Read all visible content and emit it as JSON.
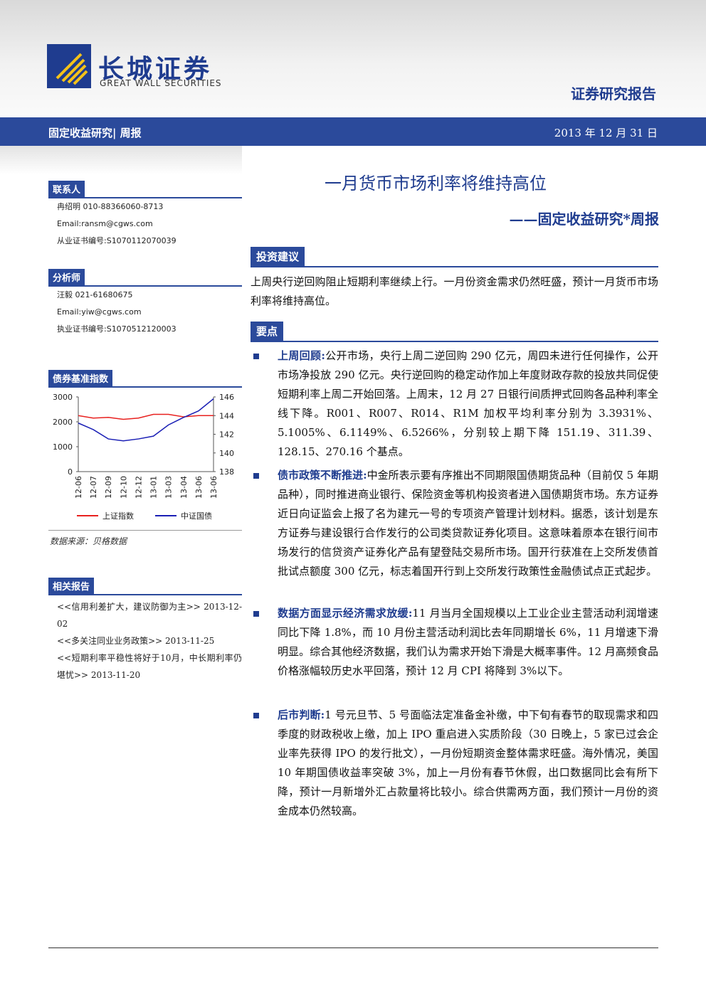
{
  "header": {
    "logo_cn": "长城证券",
    "logo_en": "GREAT WALL SECURITIES",
    "report_type": "证券研究报告",
    "band_left": "固定收益研究| 周报",
    "date": "2013 年 12 月 31 日"
  },
  "sidebar": {
    "contacts": {
      "heading": "联系人",
      "lines": [
        "冉绍明 010-88366060-8713",
        "Email:ransm@cgws.com",
        "从业证书编号:S1070112070039"
      ]
    },
    "analysts": {
      "heading": "分析师",
      "lines": [
        "汪毅 021-61680675",
        "Email:yiw@cgws.com",
        "执业证书编号:S1070512120003"
      ]
    },
    "chart_heading": "债券基准指数",
    "chart_source": "数据来源：贝格数据",
    "related": {
      "heading": "相关报告",
      "items": [
        "<<信用利差扩大，建议防御为主>> 2013-12-02",
        "<<多关注同业业务政策>> 2013-11-25",
        "<<短期利率平稳性将好于10月，中长期利率仍堪忧>> 2013-11-20"
      ]
    }
  },
  "main": {
    "title": "一月货币市场利率将维持高位",
    "subtitle": "——固定收益研究*周报",
    "advice": {
      "heading": "投资建议",
      "text": "上周央行逆回购阻止短期利率继续上行。一月份资金需求仍然旺盛，预计一月货币市场利率将维持高位。"
    },
    "points": {
      "heading": "要点",
      "items": [
        {
          "lead": "上周回顾:",
          "text": "公开市场，央行上周二逆回购 290 亿元，周四未进行任何操作，公开市场净投放 290 亿元。央行逆回购的稳定动作加上年度财政存款的投放共同促使短期利率上周二开始回落。上周末，12 月 27 日银行间质押式回购各品种利率全线下降。R001、R007、R014、R1M 加权平均利率分别为 3.3931%、5.1005%、6.1149%、6.5266%，分别较上期下降 151.19、311.39、128.15、270.16 个基点。"
        },
        {
          "lead": "债市政策不断推进:",
          "text": "中金所表示要有序推出不同期限国债期货品种（目前仅 5 年期品种），同时推进商业银行、保险资金等机构投资者进入国债期货市场。东方证券近日向证监会上报了名为建元一号的专项资产管理计划材料。据悉，该计划是东方证券与建设银行合作发行的公司类贷款证券化项目。这意味着原本在银行间市场发行的信贷资产证券化产品有望登陆交易所市场。国开行获准在上交所发债首批试点额度 300 亿元，标志着国开行到上交所发行政策性金融债试点正式起步。"
        },
        {
          "lead": "数据方面显示经济需求放缓:",
          "text": "11 月当月全国规模以上工业企业主营活动利润增速同比下降 1.8%，而 10 月份主营活动利润比去年同期增长 6%，11 月增速下滑明显。综合其他经济数据，我们认为需求开始下滑是大概率事件。12 月高频食品价格涨幅较历史水平回落，预计 12 月 CPI 将降到 3%以下。"
        },
        {
          "lead": "后市判断:",
          "text": "1 号元旦节、5 号面临法定准备金补缴，中下旬有春节的取现需求和四季度的财政税收上缴，加上 IPO 重启进入实质阶段（30 日晚上，5 家已过会企业率先获得 IPO 的发行批文），一月份短期资金整体需求旺盛。海外情况，美国 10 年期国债收益率突破 3%，加上一月份有春节休假，出口数据同比会有所下降，预计一月新增外汇占款量将比较小。综合供需两方面，我们预计一月份的资金成本仍然较高。"
        }
      ]
    }
  },
  "chart_data": {
    "type": "line",
    "categories": [
      "12-06",
      "12-07",
      "12-09",
      "12-10",
      "12-12",
      "13-01",
      "13-03",
      "13-04",
      "13-06",
      "13-06"
    ],
    "series": [
      {
        "name": "上证指数",
        "color": "#e8211f",
        "values": [
          2250,
          2150,
          2180,
          2100,
          2150,
          2300,
          2300,
          2200,
          2250,
          2250
        ]
      },
      {
        "name": "中证国债",
        "color": "#1a1fb5",
        "axis": "y2",
        "values": [
          143.2,
          142.5,
          141.5,
          141.3,
          141.5,
          141.8,
          143.0,
          143.8,
          144.5,
          145.8
        ]
      }
    ],
    "ylim": [
      0,
      3000
    ],
    "yticks": [
      0,
      1000,
      2000,
      3000
    ],
    "y2lim": [
      138,
      146
    ],
    "y2ticks": [
      138,
      140,
      142,
      144,
      146
    ]
  }
}
